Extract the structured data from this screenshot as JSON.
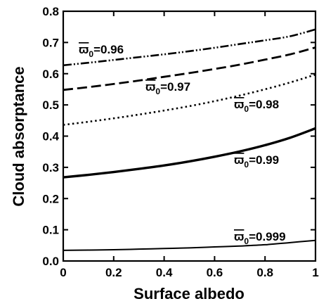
{
  "chart_data": {
    "type": "line",
    "title": "",
    "xlabel": "Surface albedo",
    "ylabel": "Cloud absorptance",
    "xlim": [
      0,
      1
    ],
    "ylim": [
      0,
      0.8
    ],
    "xticks": [
      0,
      0.2,
      0.4,
      0.6,
      0.8,
      1
    ],
    "xtick_labels": [
      "0",
      "0.2",
      "0.4",
      "0.6",
      "0.8",
      "1"
    ],
    "yticks": [
      0,
      0.1,
      0.2,
      0.3,
      0.4,
      0.5,
      0.6,
      0.7,
      0.8
    ],
    "ytick_labels": [
      "0.0",
      "0.1",
      "0.2",
      "0.3",
      "0.4",
      "0.5",
      "0.6",
      "0.7",
      "0.8"
    ],
    "grid": false,
    "x": [
      0,
      0.1,
      0.2,
      0.3,
      0.4,
      0.5,
      0.6,
      0.7,
      0.8,
      0.9,
      1.0
    ],
    "series": [
      {
        "label_symbol": "ϖ",
        "label_sub": "0",
        "label_value": "=0.96",
        "line_style": "dash-dot-dot",
        "color": "#000000",
        "values": [
          0.627,
          0.635,
          0.644,
          0.653,
          0.662,
          0.672,
          0.683,
          0.695,
          0.707,
          0.72,
          0.742
        ]
      },
      {
        "label_symbol": "ϖ",
        "label_sub": "0",
        "label_value": "=0.97",
        "line_style": "long-dash",
        "color": "#000000",
        "values": [
          0.548,
          0.557,
          0.567,
          0.578,
          0.59,
          0.602,
          0.615,
          0.629,
          0.645,
          0.662,
          0.684
        ]
      },
      {
        "label_symbol": "ϖ",
        "label_sub": "0",
        "label_value": "=0.98",
        "line_style": "dotted",
        "color": "#000000",
        "values": [
          0.436,
          0.446,
          0.457,
          0.469,
          0.482,
          0.496,
          0.512,
          0.53,
          0.55,
          0.572,
          0.597
        ]
      },
      {
        "label_symbol": "ϖ",
        "label_sub": "0",
        "label_value": "=0.99",
        "line_style": "solid-thick",
        "color": "#000000",
        "values": [
          0.268,
          0.276,
          0.285,
          0.295,
          0.306,
          0.319,
          0.334,
          0.351,
          0.371,
          0.395,
          0.425
        ]
      },
      {
        "label_symbol": "ϖ",
        "label_sub": "0",
        "label_value": "=0.999",
        "line_style": "solid",
        "color": "#000000",
        "values": [
          0.034,
          0.035,
          0.036,
          0.038,
          0.04,
          0.042,
          0.045,
          0.048,
          0.052,
          0.059,
          0.066
        ]
      }
    ]
  }
}
